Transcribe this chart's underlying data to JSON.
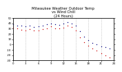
{
  "title": "Milwaukee Weather Outdoor Temp\nvs Wind Chill\n(24 Hours)",
  "title_fontsize": 3.8,
  "background_color": "#ffffff",
  "grid_color": "#aaaaaa",
  "temp_color": "#000080",
  "chill_color": "#cc0000",
  "xlim": [
    0,
    24
  ],
  "ylim": [
    -30,
    50
  ],
  "tick_fontsize": 2.8,
  "hours": [
    0,
    1,
    2,
    3,
    4,
    5,
    6,
    7,
    8,
    9,
    10,
    11,
    12,
    13,
    14,
    15,
    16,
    17,
    18,
    19,
    20,
    21,
    22,
    23
  ],
  "temp": [
    38,
    36,
    35,
    34,
    36,
    33,
    34,
    36,
    38,
    40,
    38,
    37,
    39,
    42,
    40,
    35,
    25,
    15,
    8,
    3,
    0,
    -3,
    -5,
    -8
  ],
  "chill": [
    32,
    30,
    28,
    27,
    29,
    26,
    27,
    29,
    31,
    34,
    31,
    30,
    32,
    35,
    33,
    26,
    14,
    4,
    -2,
    -8,
    -12,
    -17,
    -20,
    -24
  ],
  "yticks": [
    -30,
    -20,
    -10,
    0,
    10,
    20,
    30,
    40,
    50
  ],
  "ytick_labels": [
    "-30",
    "-20",
    "-10",
    "0",
    "10",
    "20",
    "30",
    "40",
    "50"
  ],
  "xticks": [
    0,
    3,
    6,
    9,
    12,
    15,
    18,
    21,
    24
  ],
  "xtick_labels": [
    "0",
    "3",
    "6",
    "9",
    "12",
    "15",
    "18",
    "21",
    "24"
  ]
}
